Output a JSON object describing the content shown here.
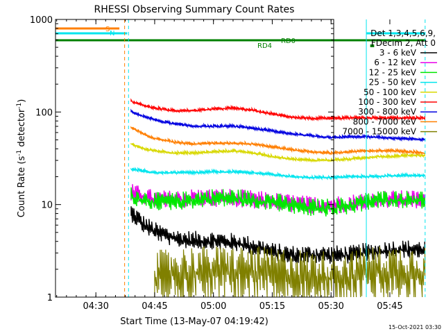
{
  "chart_data": {
    "type": "line",
    "title": "RHESSI Observing Summary Count Rates",
    "xlabel": "Start Time (13-May-07 04:19:42)",
    "ylabel": "Count Rate (s",
    "ylabel_sup": "-1",
    "ylabel_tail": " detector",
    "ylabel_sup2": "-1",
    "ylabel_close": ")",
    "y_scale": "log",
    "ylim": [
      1,
      1000
    ],
    "xlim": [
      "04:19:42",
      "05:55:00"
    ],
    "x_ticks": [
      "04:30",
      "04:45",
      "05:00",
      "05:15",
      "05:30",
      "05:45"
    ],
    "y_ticks": [
      "1",
      "10",
      "100",
      "1000"
    ],
    "grid": false,
    "legend_position": "right",
    "legend_header": [
      "Det 1,3,4,5,6,9,",
      "FDecim 2, Att 0"
    ],
    "date_stamp": "15-Oct-2021 03:30",
    "flag_labels": {
      "s": "S",
      "n": "N",
      "rd0": "RD0",
      "rd4": "RD4"
    },
    "vertical_markers": [
      {
        "time": "04:19:42",
        "color": "#00e5ee",
        "style": "solid"
      },
      {
        "time": "04:37:20",
        "color": "#ff7f00",
        "style": "dashed"
      },
      {
        "time": "04:38:20",
        "color": "#00e5ee",
        "style": "dashed"
      },
      {
        "time": "05:39:00",
        "color": "#00e5ee",
        "style": "solid"
      },
      {
        "time": "05:54:00",
        "color": "#00e5ee",
        "style": "dashed"
      }
    ],
    "flag_bars": [
      {
        "name": "S",
        "color": "#ff7f00",
        "start": "04:19:42",
        "end": "04:36:00",
        "level": 1
      },
      {
        "name": "N",
        "color": "#00e5ee",
        "start": "04:19:42",
        "end": "04:38:00",
        "level": 2
      },
      {
        "name": "N",
        "color": "#00e5ee",
        "start": "05:39:00",
        "end": "05:54:00",
        "level": 2
      },
      {
        "name": "RD0",
        "color": "#008000",
        "start": "04:19:42",
        "end": "05:54:00",
        "level": 3
      },
      {
        "name": "RD4",
        "color": "#008000",
        "start": "05:40:00",
        "end": "05:41:00",
        "level": 4
      }
    ],
    "series": [
      {
        "name": "3 - 6 keV",
        "color": "#000000",
        "x": [
          "04:39",
          "04:42",
          "04:45",
          "04:50",
          "04:55",
          "05:00",
          "05:05",
          "05:10",
          "05:15",
          "05:20",
          "05:25",
          "05:30",
          "05:35",
          "05:39",
          "05:42",
          "05:45",
          "05:50",
          "05:54"
        ],
        "values": [
          8,
          6,
          5,
          4.2,
          4,
          4,
          3.8,
          3.5,
          3,
          2.8,
          2.8,
          2.8,
          2.8,
          3,
          3,
          3.2,
          3.2,
          3.2
        ]
      },
      {
        "name": "6 - 12 keV",
        "color": "#e800e8",
        "x": [
          "04:39",
          "04:42",
          "04:45",
          "04:50",
          "04:55",
          "05:00",
          "05:05",
          "05:10",
          "05:15",
          "05:20",
          "05:25",
          "05:30",
          "05:35",
          "05:39",
          "05:42",
          "05:45",
          "05:50",
          "05:54"
        ],
        "values": [
          13,
          12,
          11,
          11,
          11.5,
          11.5,
          11.5,
          11,
          10.5,
          10,
          9.5,
          9.5,
          10,
          10.5,
          11,
          11,
          11,
          11
        ]
      },
      {
        "name": "12 - 25 keV",
        "color": "#00e800",
        "x": [
          "04:39",
          "04:42",
          "04:45",
          "04:50",
          "04:55",
          "05:00",
          "05:05",
          "05:10",
          "05:15",
          "05:20",
          "05:25",
          "05:30",
          "05:35",
          "05:39",
          "05:42",
          "05:45",
          "05:50",
          "05:54"
        ],
        "values": [
          12,
          11,
          10.5,
          10.5,
          11,
          11.5,
          11.5,
          11,
          10.5,
          9.5,
          9,
          9,
          9.5,
          10.5,
          11,
          11,
          11,
          11
        ]
      },
      {
        "name": "25 - 50 keV",
        "color": "#00e5ee",
        "x": [
          "04:39",
          "04:42",
          "04:45",
          "04:50",
          "04:55",
          "05:00",
          "05:05",
          "05:10",
          "05:15",
          "05:20",
          "05:25",
          "05:30",
          "05:35",
          "05:39",
          "05:42",
          "05:45",
          "05:50",
          "05:54"
        ],
        "values": [
          24,
          23,
          22,
          22,
          22,
          22.5,
          22.5,
          22,
          21,
          20,
          19.5,
          19.5,
          20,
          20,
          20,
          20.5,
          20.5,
          20.5
        ]
      },
      {
        "name": "50 - 100 keV",
        "color": "#d8d800",
        "x": [
          "04:39",
          "04:42",
          "04:45",
          "04:50",
          "04:55",
          "05:00",
          "05:05",
          "05:10",
          "05:15",
          "05:20",
          "05:25",
          "05:30",
          "05:35",
          "05:39",
          "05:42",
          "05:45",
          "05:50",
          "05:54"
        ],
        "values": [
          45,
          40,
          38,
          36,
          36,
          37,
          38,
          36,
          33,
          31,
          30,
          30,
          31,
          32,
          33,
          33,
          34,
          34
        ]
      },
      {
        "name": "100 - 300 keV",
        "color": "#ff0000",
        "x": [
          "04:39",
          "04:42",
          "04:45",
          "04:50",
          "04:55",
          "05:00",
          "05:05",
          "05:10",
          "05:15",
          "05:20",
          "05:25",
          "05:30",
          "05:35",
          "05:39",
          "05:42",
          "05:45",
          "05:50",
          "05:54"
        ],
        "values": [
          130,
          118,
          110,
          103,
          103,
          107,
          110,
          104,
          95,
          88,
          85,
          85,
          86,
          86,
          86,
          86,
          86,
          86
        ]
      },
      {
        "name": "300 - 800 keV",
        "color": "#0000e0",
        "x": [
          "04:39",
          "04:42",
          "04:45",
          "04:50",
          "04:55",
          "05:00",
          "05:05",
          "05:10",
          "05:15",
          "05:20",
          "05:25",
          "05:30",
          "05:35",
          "05:39",
          "05:42",
          "05:45",
          "05:50",
          "05:54"
        ],
        "values": [
          100,
          90,
          82,
          74,
          70,
          70,
          70,
          67,
          62,
          58,
          55,
          53,
          54,
          54,
          53,
          52,
          51,
          50
        ]
      },
      {
        "name": "800 - 7000 keV",
        "color": "#ff7f00",
        "x": [
          "04:39",
          "04:42",
          "04:45",
          "04:50",
          "04:55",
          "05:00",
          "05:05",
          "05:10",
          "05:15",
          "05:20",
          "05:25",
          "05:30",
          "05:35",
          "05:39",
          "05:42",
          "05:45",
          "05:50",
          "05:54"
        ],
        "values": [
          68,
          58,
          52,
          47,
          45,
          46,
          46,
          45,
          42,
          39,
          37,
          36,
          37,
          38,
          38,
          38,
          37,
          36
        ]
      },
      {
        "name": "7000 - 15000 keV",
        "color": "#808000",
        "x": [
          "04:45",
          "04:50",
          "04:55",
          "05:00",
          "05:05",
          "05:10",
          "05:15",
          "05:20",
          "05:25",
          "05:30",
          "05:35",
          "05:39",
          "05:42",
          "05:45",
          "05:50",
          "05:54"
        ],
        "values": [
          1.6,
          1.7,
          1.8,
          1.8,
          1.8,
          1.8,
          1.7,
          1.7,
          1.6,
          1.6,
          1.6,
          1.8,
          1.8,
          1.8,
          1.8,
          1.8
        ]
      }
    ]
  }
}
